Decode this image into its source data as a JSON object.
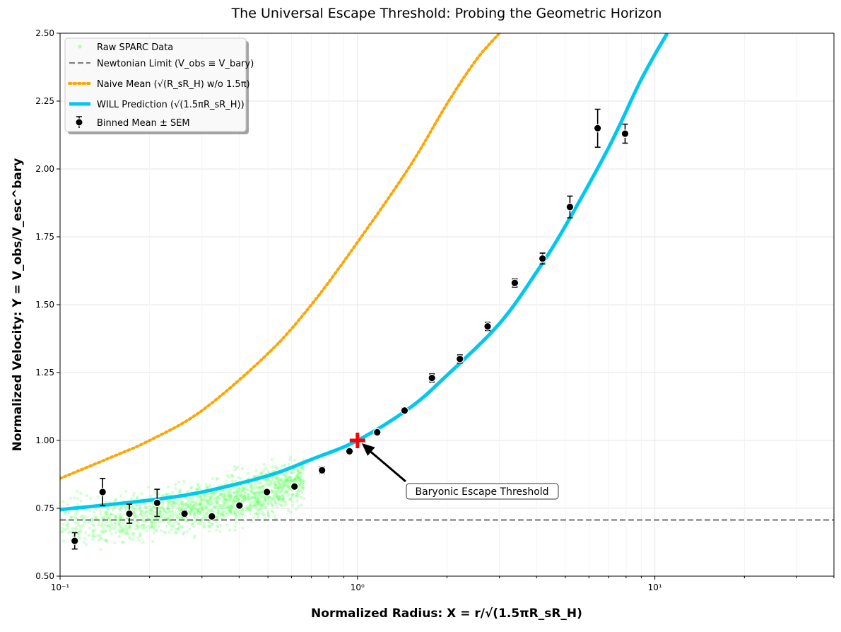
{
  "chart_data": {
    "type": "scatter",
    "title": "The Universal Escape Threshold: Probing the Geometric Horizon",
    "xlabel": "Normalized Radius: X = r/√(1.5πR_sR_H)",
    "ylabel": "Normalized Velocity: Y = V_obs/V_esc^bary",
    "xscale": "log",
    "xlim": [
      0.1,
      40
    ],
    "ylim": [
      0.5,
      2.5
    ],
    "x_tick_labels": [
      "10⁻¹",
      "10⁰",
      "10¹"
    ],
    "y_tick_labels": [
      "0.50",
      "0.75",
      "1.00",
      "1.25",
      "1.50",
      "1.75",
      "2.00",
      "2.25",
      "2.50"
    ],
    "grid": true,
    "legend_position": "upper-left",
    "legend": [
      {
        "label": "Raw SPARC Data",
        "color": "#66ff66",
        "style": "points"
      },
      {
        "label": "Newtonian Limit (V_obs ≡ V_bary)",
        "color": "#808080",
        "style": "dashed"
      },
      {
        "label": "Naive Mean (√(R_sR_H) w/o 1.5π)",
        "color": "#ffa500",
        "style": "dotted"
      },
      {
        "label": "WILL Prediction (√(1.5πR_sR_H))",
        "color": "#00c8f0",
        "style": "solid"
      },
      {
        "label": "Binned Mean ± SEM",
        "color": "#000000",
        "style": "errorbar"
      }
    ],
    "series": [
      {
        "name": "Binned Mean ± SEM",
        "x": [
          0.112,
          0.139,
          0.171,
          0.212,
          0.262,
          0.324,
          0.401,
          0.496,
          0.614,
          0.76,
          0.94,
          1.165,
          1.44,
          1.78,
          2.21,
          2.74,
          3.38,
          4.19,
          5.18,
          6.42,
          7.94
        ],
        "y": [
          0.63,
          0.81,
          0.73,
          0.77,
          0.73,
          0.72,
          0.76,
          0.81,
          0.83,
          0.89,
          0.96,
          1.03,
          1.11,
          1.23,
          1.3,
          1.42,
          1.58,
          1.67,
          1.86,
          2.15,
          2.13
        ],
        "err": [
          0.03,
          0.05,
          0.035,
          0.05,
          0.012,
          0.008,
          0.008,
          0.008,
          0.008,
          0.012,
          0.01,
          0.01,
          0.01,
          0.015,
          0.015,
          0.015,
          0.015,
          0.02,
          0.04,
          0.07,
          0.035
        ]
      },
      {
        "name": "Newtonian Limit (V_obs ≡ V_bary)",
        "y_const": 0.707
      },
      {
        "name": "WILL Prediction (√(1.5πR_sR_H))",
        "x": [
          0.1,
          0.2,
          0.3,
          0.5,
          0.7,
          1.0,
          1.5,
          2.0,
          3.0,
          4.0,
          5.0,
          7.0,
          9.0,
          11.0
        ],
        "y": [
          0.745,
          0.78,
          0.81,
          0.87,
          0.93,
          1.0,
          1.12,
          1.24,
          1.43,
          1.62,
          1.79,
          2.08,
          2.33,
          2.5
        ]
      },
      {
        "name": "Naive Mean (√(R_sR_H) w/o 1.5π)",
        "x": [
          0.1,
          0.15,
          0.2,
          0.3,
          0.5,
          0.7,
          1.0,
          1.5,
          2.0,
          2.5,
          3.0,
          3.5
        ],
        "y": [
          0.86,
          0.94,
          1.0,
          1.11,
          1.32,
          1.5,
          1.73,
          2.01,
          2.24,
          2.4,
          2.5,
          2.58
        ]
      }
    ],
    "annotations": [
      {
        "text": "Baryonic Escape Threshold",
        "point": [
          1.0,
          1.0
        ],
        "marker": "red-plus",
        "arrow": true
      }
    ],
    "colors": {
      "raw": "#66ff66",
      "newtonian": "#808080",
      "naive": "#ffa500",
      "will": "#00c8f0",
      "binned": "#000000",
      "threshold": "#ff0000"
    }
  }
}
